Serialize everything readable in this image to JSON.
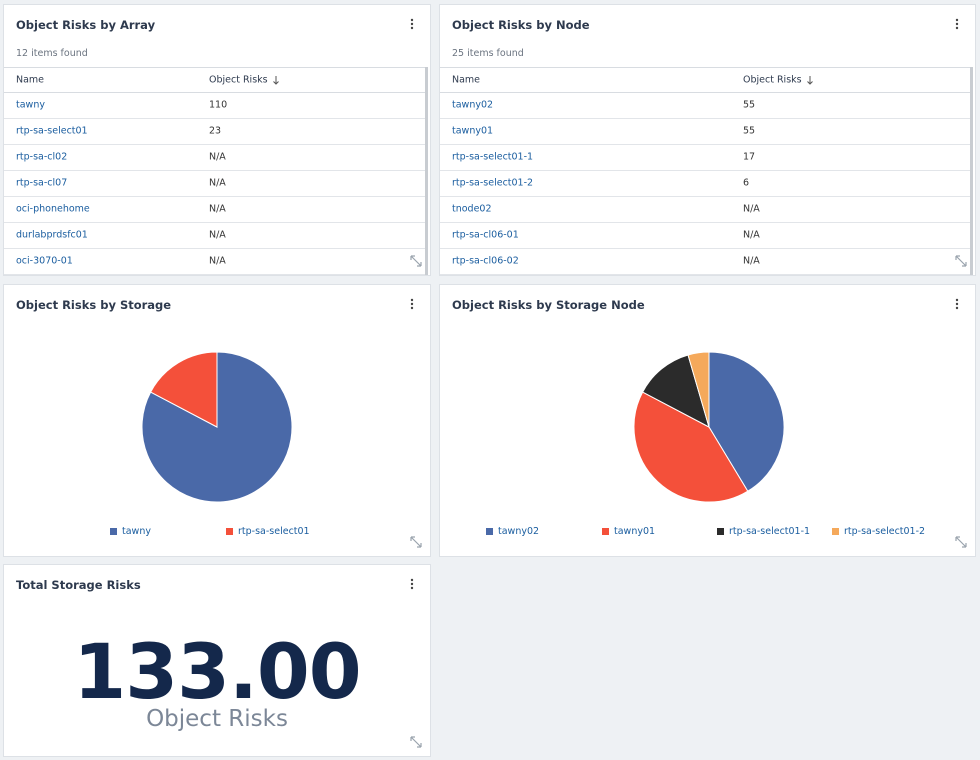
{
  "panels": {
    "array": {
      "title": "Object Risks by Array",
      "count": "12 items found",
      "columns": [
        "Name",
        "Object Risks"
      ],
      "rows": [
        [
          "tawny",
          "110"
        ],
        [
          "rtp-sa-select01",
          "23"
        ],
        [
          "rtp-sa-cl02",
          "N/A"
        ],
        [
          "rtp-sa-cl07",
          "N/A"
        ],
        [
          "oci-phonehome",
          "N/A"
        ],
        [
          "durlabprdsfc01",
          "N/A"
        ],
        [
          "oci-3070-01",
          "N/A"
        ]
      ]
    },
    "node": {
      "title": "Object Risks by Node",
      "count": "25 items found",
      "columns": [
        "Name",
        "Object Risks"
      ],
      "rows": [
        [
          "tawny02",
          "55"
        ],
        [
          "tawny01",
          "55"
        ],
        [
          "rtp-sa-select01-1",
          "17"
        ],
        [
          "rtp-sa-select01-2",
          "6"
        ],
        [
          "tnode02",
          "N/A"
        ],
        [
          "rtp-sa-cl06-01",
          "N/A"
        ],
        [
          "rtp-sa-cl06-02",
          "N/A"
        ]
      ]
    },
    "storage": {
      "title": "Object Risks by Storage",
      "chart": {
        "type": "pie",
        "categories": [
          "tawny",
          "rtp-sa-select01"
        ],
        "values": [
          110,
          23
        ],
        "colors": [
          "#4a69a8",
          "#f4503a"
        ]
      }
    },
    "storage_node": {
      "title": "Object Risks by Storage Node",
      "chart": {
        "type": "pie",
        "categories": [
          "tawny02",
          "tawny01",
          "rtp-sa-select01-1",
          "rtp-sa-select01-2"
        ],
        "values": [
          55,
          55,
          17,
          6
        ],
        "colors": [
          "#4a69a8",
          "#f4503a",
          "#2b2b2b",
          "#f5a95b"
        ]
      }
    },
    "total": {
      "title": "Total Storage Risks",
      "value": "133.00",
      "label": "Object Risks"
    }
  }
}
